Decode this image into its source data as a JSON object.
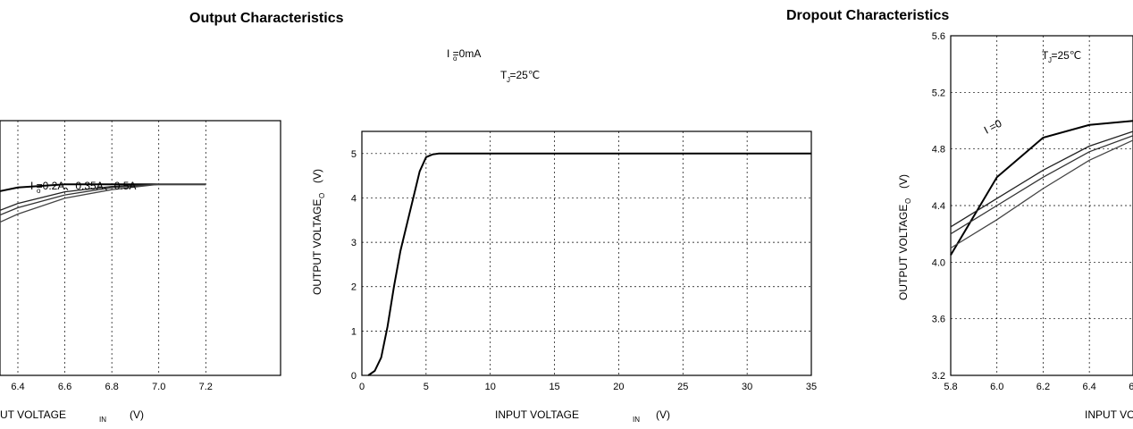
{
  "titles": {
    "output": "Output    Characteristics",
    "dropout": "Dropout Characteristics"
  },
  "chart_data": [
    {
      "type": "line",
      "ylabel": "OUTPUT VOLTAGE",
      "ylabel_unit": "(V)",
      "ylabel_sub": "O",
      "xlabel": "INPUT VOLTAGE",
      "xlabel_sub": "IN",
      "xlabel_unit": "(V)",
      "x_ticks": [
        "0",
        "5",
        "10",
        "15",
        "20",
        "25",
        "30",
        "35"
      ],
      "y_ticks": [
        "0",
        "1",
        "2",
        "3",
        "4",
        "5"
      ],
      "xlim": [
        0,
        35
      ],
      "ylim": [
        0,
        5.5
      ],
      "grid": true,
      "annotations": [
        "I =0mA",
        "T =25℃"
      ],
      "annotation_subs": [
        "o",
        "J"
      ],
      "series": [
        {
          "x": [
            0.5,
            1.0,
            1.5,
            2.0,
            2.5,
            3.0,
            3.5,
            4.0,
            4.5,
            5.0,
            5.5,
            6.0,
            10,
            20,
            35
          ],
          "y": [
            0,
            0.1,
            0.4,
            1.1,
            2.0,
            2.8,
            3.4,
            4.0,
            4.6,
            4.92,
            4.98,
            5.0,
            5.0,
            5.0,
            5.0
          ]
        }
      ]
    },
    {
      "type": "line",
      "ylabel": "OUTPUT VOLTAGE",
      "ylabel_unit": "(V)",
      "ylabel_sub": "O",
      "xlabel": "INPUT VOLTAGE",
      "xlabel_sub": "IN",
      "xlabel_unit": "(V)",
      "x_ticks": [
        "5.8",
        "6.0",
        "6.2",
        "6.4",
        "6.6",
        "6.8",
        "7.0",
        "7.2"
      ],
      "y_ticks": [
        "3.2",
        "3.6",
        "4.0",
        "4.4",
        "4.8",
        "5.2",
        "5.6"
      ],
      "xlim": [
        5.8,
        7.2
      ],
      "ylim": [
        3.2,
        5.6
      ],
      "grid": true,
      "annotations": [
        "T =25℃",
        "I =0.2A、0.35A、0.5A",
        "I =0"
      ],
      "annotation_subs": [
        "J",
        "o",
        "o"
      ],
      "series": [
        {
          "x": [
            5.8,
            6.0,
            6.2,
            6.4,
            6.6,
            6.8,
            7.0,
            7.2
          ],
          "y": [
            4.05,
            4.6,
            4.88,
            4.97,
            5.0,
            5.0,
            5.0,
            5.0
          ]
        },
        {
          "x": [
            5.8,
            6.0,
            6.2,
            6.4,
            6.6,
            6.8,
            7.0,
            7.2
          ],
          "y": [
            4.25,
            4.45,
            4.65,
            4.82,
            4.93,
            4.98,
            5.0,
            5.0
          ]
        },
        {
          "x": [
            5.8,
            6.0,
            6.2,
            6.4,
            6.6,
            6.8,
            7.0,
            7.2
          ],
          "y": [
            4.2,
            4.4,
            4.6,
            4.78,
            4.9,
            4.97,
            5.0,
            5.0
          ]
        },
        {
          "x": [
            5.8,
            6.0,
            6.2,
            6.4,
            6.6,
            6.8,
            7.0,
            7.2
          ],
          "y": [
            4.1,
            4.3,
            4.52,
            4.72,
            4.87,
            4.95,
            5.0,
            5.0
          ]
        }
      ]
    }
  ]
}
